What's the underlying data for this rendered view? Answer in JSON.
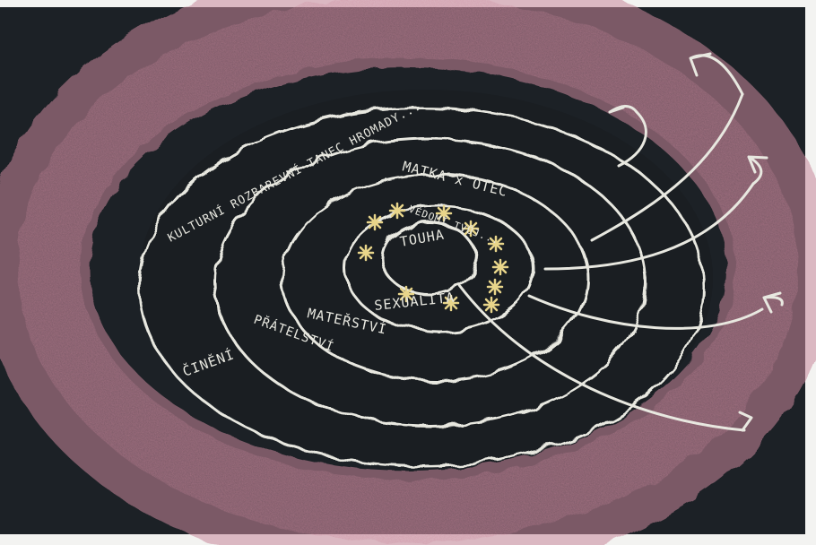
{
  "scene": {
    "kind": "chalkboard drawing",
    "board_color": "#1c2126",
    "border_color": "#f3f3f1",
    "pink_chalk": "#c8879a",
    "white_chalk": "#e8e8e0",
    "yellow_chalk": "#e8d58a"
  },
  "labels": {
    "outer": "KULTURNÍ ROZBAREVNÍ TANEC HROMADY...",
    "parents": "MATKA x OTEC",
    "center": "TOUHA",
    "inner_ring": "VĚDOMÍ TVŮJ...",
    "sexuality": "SEXUALITA",
    "motherhood": "MATEŘSTVÍ",
    "friendship": "PŘÁTELSTVÍ",
    "doing": "ČINĚNÍ"
  }
}
